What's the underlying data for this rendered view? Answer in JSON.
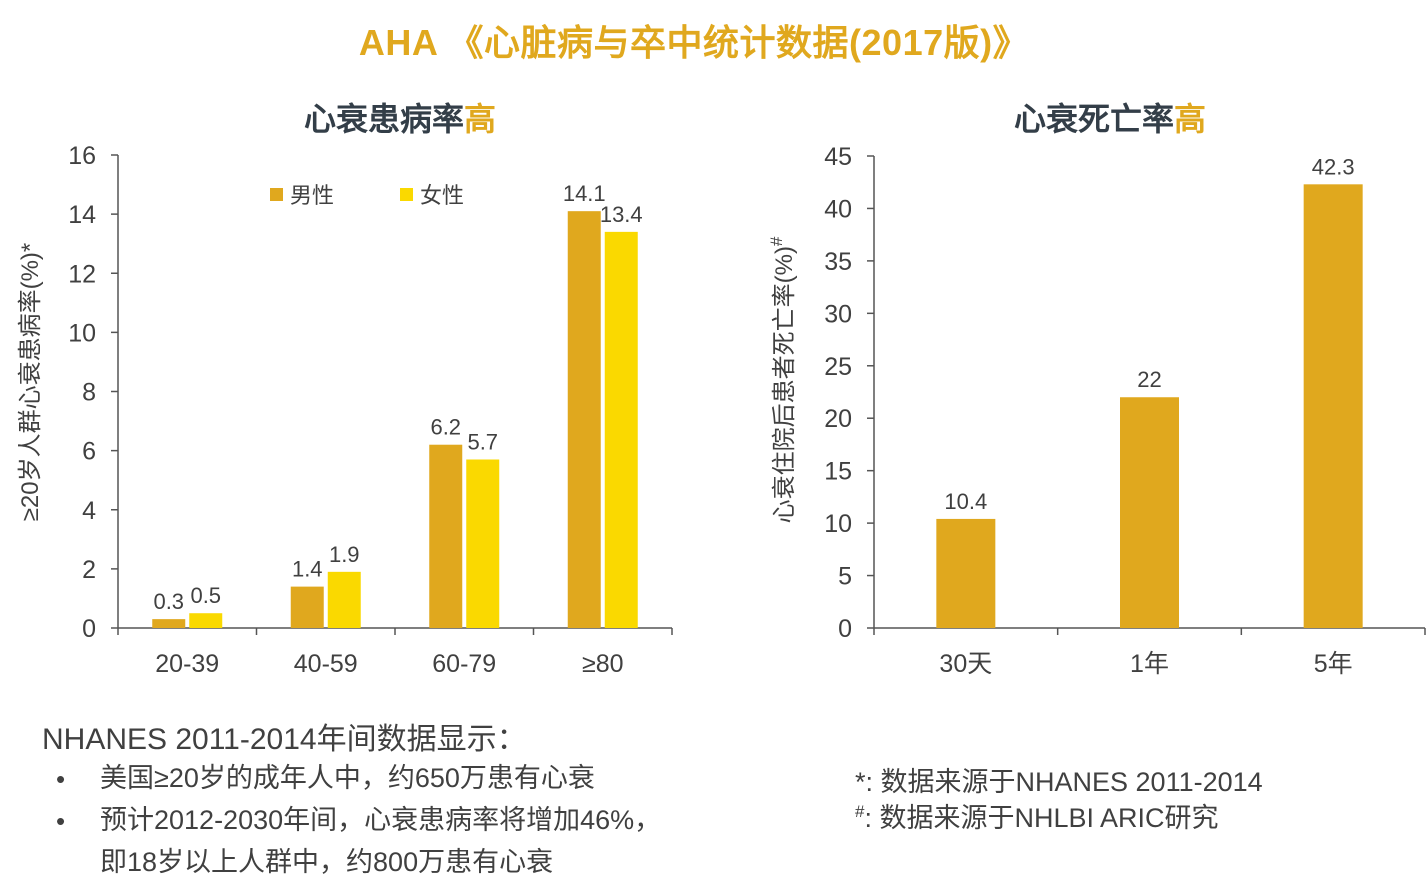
{
  "page": {
    "title": "AHA 《心脏病与卒中统计数据(2017版)》"
  },
  "chart_data": [
    {
      "type": "bar",
      "title_main": "心衰患病率",
      "title_highlight": "高",
      "ylabel": "≥20岁人群心衰患病率(%)*",
      "categories": [
        "20-39",
        "40-59",
        "60-79",
        "≥80"
      ],
      "series": [
        {
          "name": "男性",
          "color": "#e0a81e",
          "values": [
            0.3,
            1.4,
            6.2,
            14.1
          ],
          "labels": [
            "0.3",
            "1.4",
            "6.2",
            "14.1"
          ]
        },
        {
          "name": "女性",
          "color": "#fad900",
          "values": [
            0.5,
            1.9,
            5.7,
            13.4
          ],
          "labels": [
            "0.5",
            "1.9",
            "5.7",
            "13.4"
          ]
        }
      ],
      "ylim": [
        0,
        16
      ],
      "yticks": [
        0,
        2,
        4,
        6,
        8,
        10,
        12,
        14,
        16
      ],
      "ytick_labels": [
        "0",
        "2",
        "4",
        "6",
        "8",
        "10",
        "12",
        "14",
        "16"
      ],
      "legend": "top-left"
    },
    {
      "type": "bar",
      "title_main": "心衰死亡率",
      "title_highlight": "高",
      "ylabel": "心衰住院后患者死亡率(%)",
      "ylabel_mark": "#",
      "categories": [
        "30天",
        "1年",
        "5年"
      ],
      "series": [
        {
          "name": "死亡率",
          "color": "#e0a81e",
          "values": [
            10.4,
            22,
            42.3
          ],
          "labels": [
            "10.4",
            "22",
            "42.3"
          ]
        }
      ],
      "ylim": [
        0,
        45
      ],
      "yticks": [
        0,
        5,
        10,
        15,
        20,
        25,
        30,
        35,
        40,
        45
      ],
      "ytick_labels": [
        "0",
        "5",
        "10",
        "15",
        "20",
        "25",
        "30",
        "35",
        "40",
        "45"
      ]
    }
  ],
  "notes": {
    "intro": "NHANES 2011-2014年间数据显示：",
    "bullet_symbol": "•",
    "bullets": [
      "美国≥20岁的成年人中，约650万患有心衰",
      "预计2012-2030年间，心衰患病率将增加46%，",
      "即18岁以上人群中，约800万患有心衰"
    ],
    "sources": [
      {
        "mark": "*",
        "text": ": 数据来源于NHANES 2011-2014"
      },
      {
        "mark": "#",
        "text": ": 数据来源于NHLBI ARIC研究"
      }
    ]
  },
  "colors": {
    "accent": "#e0a81e",
    "accent_light": "#fad900",
    "title_dark": "#333e48",
    "text": "#404040"
  }
}
